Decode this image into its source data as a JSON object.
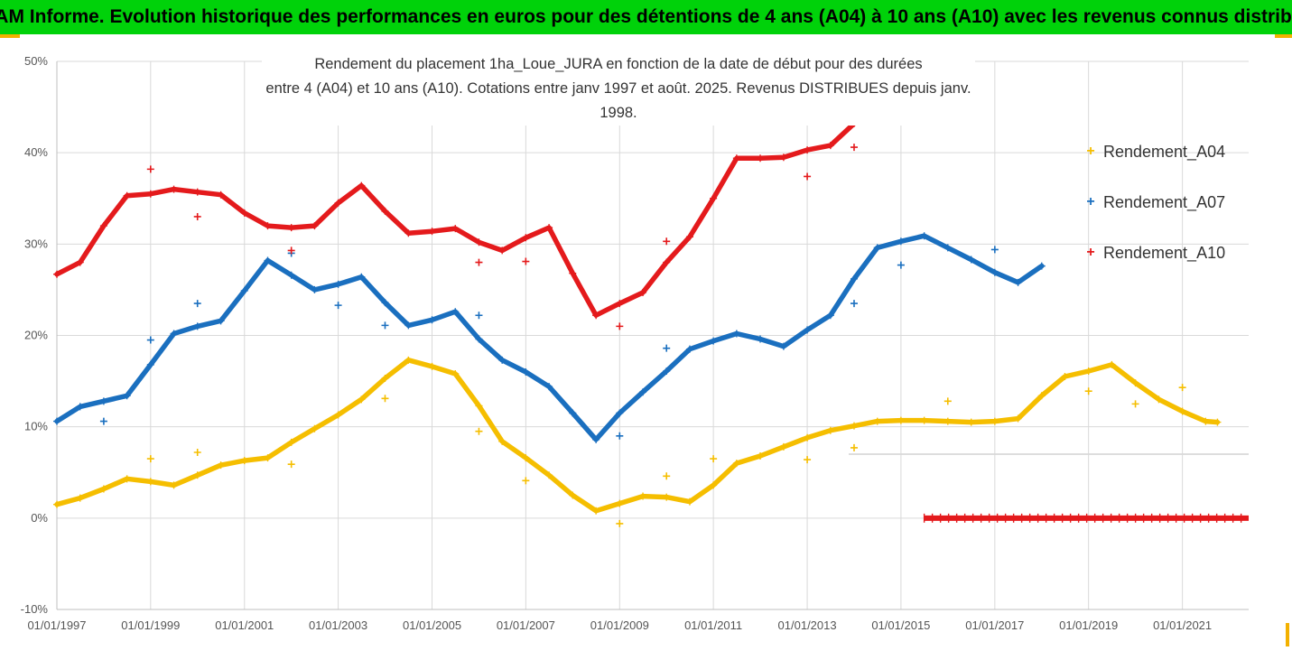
{
  "header": {
    "title": "ADAM Informe. Evolution historique des performances en euros pour des détentions de 4 ans (A04) à 10 ans (A10) avec les revenus connus distribués"
  },
  "colors": {
    "banner": "#00d20a",
    "frame_accent": "#f3b100",
    "A04": "#f5be00",
    "A07": "#1a6fbf",
    "A10": "#e41a1c",
    "grid": "#d9d9d9"
  },
  "chart_data": {
    "type": "scatter",
    "title_line1": "Rendement du placement 1ha_Loue_JURA en fonction de la date de début pour des durées",
    "title_line2": "entre 4 (A04) et 10 ans (A10). Cotations entre janv 1997 et août. 2025. Revenus DISTRIBUES depuis janv. 1998.",
    "xlabel": "",
    "ylabel": "",
    "x_ticks": [
      "01/01/1997",
      "01/01/1999",
      "01/01/2001",
      "01/01/2003",
      "01/01/2005",
      "01/01/2007",
      "01/01/2009",
      "01/01/2011",
      "01/01/2013",
      "01/01/2015",
      "01/01/2017",
      "01/01/2019",
      "01/01/2021"
    ],
    "y_ticks": [
      "-10%",
      "0%",
      "10%",
      "20%",
      "30%",
      "40%",
      "50%"
    ],
    "xlim": [
      "1997-01-01",
      "2022-06-01"
    ],
    "ylim": [
      -10,
      50
    ],
    "legend_position": "right",
    "grid": true,
    "series": [
      {
        "name": "Rendement_A04",
        "key": "A04",
        "line": [
          [
            "1997-01-01",
            1.5
          ],
          [
            "1997-07-01",
            2.2
          ],
          [
            "1998-01-01",
            3.2
          ],
          [
            "1998-07-01",
            4.3
          ],
          [
            "1999-01-01",
            4.0
          ],
          [
            "1999-07-01",
            3.6
          ],
          [
            "2000-01-01",
            4.7
          ],
          [
            "2000-07-01",
            5.8
          ],
          [
            "2001-01-01",
            6.3
          ],
          [
            "2001-07-01",
            6.6
          ],
          [
            "2002-01-01",
            8.3
          ],
          [
            "2002-07-01",
            9.8
          ],
          [
            "2003-01-01",
            11.3
          ],
          [
            "2003-07-01",
            13.0
          ],
          [
            "2004-01-01",
            15.3
          ],
          [
            "2004-07-01",
            17.3
          ],
          [
            "2005-01-01",
            16.6
          ],
          [
            "2005-07-01",
            15.8
          ],
          [
            "2006-01-01",
            12.3
          ],
          [
            "2006-07-01",
            8.4
          ],
          [
            "2007-01-01",
            6.6
          ],
          [
            "2007-07-01",
            4.7
          ],
          [
            "2008-01-01",
            2.5
          ],
          [
            "2008-07-01",
            0.8
          ],
          [
            "2009-01-01",
            1.6
          ],
          [
            "2009-07-01",
            2.4
          ],
          [
            "2010-01-01",
            2.3
          ],
          [
            "2010-07-01",
            1.8
          ],
          [
            "2011-01-01",
            3.6
          ],
          [
            "2011-07-01",
            6.0
          ],
          [
            "2012-01-01",
            6.8
          ],
          [
            "2012-07-01",
            7.8
          ],
          [
            "2013-01-01",
            8.8
          ],
          [
            "2013-07-01",
            9.6
          ],
          [
            "2014-01-01",
            10.1
          ],
          [
            "2014-07-01",
            10.6
          ],
          [
            "2015-01-01",
            10.7
          ],
          [
            "2015-07-01",
            10.7
          ],
          [
            "2016-01-01",
            10.6
          ],
          [
            "2016-07-01",
            10.5
          ],
          [
            "2017-01-01",
            10.6
          ],
          [
            "2017-07-01",
            10.9
          ],
          [
            "2018-01-01",
            13.4
          ],
          [
            "2018-07-01",
            15.5
          ],
          [
            "2019-01-01",
            16.1
          ],
          [
            "2019-07-01",
            16.8
          ],
          [
            "2020-01-01",
            14.8
          ],
          [
            "2020-07-01",
            13.0
          ],
          [
            "2021-01-01",
            11.7
          ],
          [
            "2021-07-01",
            10.6
          ],
          [
            "2021-10-01",
            10.5
          ]
        ],
        "outliers": [
          [
            "1999-01-01",
            6.5
          ],
          [
            "2000-01-01",
            7.2
          ],
          [
            "2002-01-01",
            5.9
          ],
          [
            "2004-01-01",
            13.1
          ],
          [
            "2006-01-01",
            9.5
          ],
          [
            "2007-01-01",
            4.1
          ],
          [
            "2009-01-01",
            -0.6
          ],
          [
            "2010-01-01",
            4.6
          ],
          [
            "2011-01-01",
            6.5
          ],
          [
            "2013-01-01",
            6.4
          ],
          [
            "2014-01-01",
            7.7
          ],
          [
            "2016-01-01",
            12.8
          ],
          [
            "2019-01-01",
            13.9
          ],
          [
            "2020-01-01",
            12.5
          ],
          [
            "2021-01-01",
            14.3
          ]
        ]
      },
      {
        "name": "Rendement_A07",
        "key": "A07",
        "line": [
          [
            "1997-01-01",
            10.6
          ],
          [
            "1997-07-01",
            12.2
          ],
          [
            "1998-01-01",
            12.8
          ],
          [
            "1998-07-01",
            13.4
          ],
          [
            "1999-01-01",
            16.8
          ],
          [
            "1999-07-01",
            20.2
          ],
          [
            "2000-01-01",
            21.0
          ],
          [
            "2000-07-01",
            21.6
          ],
          [
            "2001-01-01",
            24.9
          ],
          [
            "2001-07-01",
            28.2
          ],
          [
            "2002-01-01",
            26.6
          ],
          [
            "2002-07-01",
            25.0
          ],
          [
            "2003-01-01",
            25.6
          ],
          [
            "2003-07-01",
            26.4
          ],
          [
            "2004-01-01",
            23.6
          ],
          [
            "2004-07-01",
            21.1
          ],
          [
            "2005-01-01",
            21.7
          ],
          [
            "2005-07-01",
            22.6
          ],
          [
            "2006-01-01",
            19.6
          ],
          [
            "2006-07-01",
            17.3
          ],
          [
            "2007-01-01",
            16.0
          ],
          [
            "2007-07-01",
            14.4
          ],
          [
            "2008-01-01",
            11.5
          ],
          [
            "2008-07-01",
            8.6
          ],
          [
            "2009-01-01",
            11.5
          ],
          [
            "2009-07-01",
            13.8
          ],
          [
            "2010-01-01",
            16.1
          ],
          [
            "2010-07-01",
            18.5
          ],
          [
            "2011-01-01",
            19.4
          ],
          [
            "2011-07-01",
            20.2
          ],
          [
            "2012-01-01",
            19.6
          ],
          [
            "2012-07-01",
            18.8
          ],
          [
            "2013-01-01",
            20.6
          ],
          [
            "2013-07-01",
            22.2
          ],
          [
            "2014-01-01",
            26.2
          ],
          [
            "2014-07-01",
            29.6
          ],
          [
            "2015-01-01",
            30.3
          ],
          [
            "2015-07-01",
            30.9
          ],
          [
            "2016-01-01",
            29.6
          ],
          [
            "2016-07-01",
            28.3
          ],
          [
            "2017-01-01",
            26.9
          ],
          [
            "2017-07-01",
            25.8
          ],
          [
            "2018-01-01",
            27.6
          ]
        ],
        "outliers": [
          [
            "1998-01-01",
            10.6
          ],
          [
            "1999-01-01",
            19.5
          ],
          [
            "2000-01-01",
            23.5
          ],
          [
            "2002-01-01",
            29.0
          ],
          [
            "2003-01-01",
            23.3
          ],
          [
            "2004-01-01",
            21.1
          ],
          [
            "2006-01-01",
            22.2
          ],
          [
            "2009-01-01",
            9.0
          ],
          [
            "2010-01-01",
            18.6
          ],
          [
            "2014-01-01",
            23.5
          ],
          [
            "2015-01-01",
            27.7
          ],
          [
            "2017-01-01",
            29.4
          ]
        ]
      },
      {
        "name": "Rendement_A10",
        "key": "A10",
        "line": [
          [
            "1997-01-01",
            26.7
          ],
          [
            "1997-07-01",
            28.0
          ],
          [
            "1998-01-01",
            32.0
          ],
          [
            "1998-07-01",
            35.3
          ],
          [
            "1999-01-01",
            35.5
          ],
          [
            "1999-07-01",
            36.0
          ],
          [
            "2000-01-01",
            35.7
          ],
          [
            "2000-07-01",
            35.4
          ],
          [
            "2001-01-01",
            33.4
          ],
          [
            "2001-07-01",
            32.0
          ],
          [
            "2002-01-01",
            31.8
          ],
          [
            "2002-07-01",
            32.0
          ],
          [
            "2003-01-01",
            34.5
          ],
          [
            "2003-07-01",
            36.4
          ],
          [
            "2004-01-01",
            33.6
          ],
          [
            "2004-07-01",
            31.2
          ],
          [
            "2005-01-01",
            31.4
          ],
          [
            "2005-07-01",
            31.7
          ],
          [
            "2006-01-01",
            30.2
          ],
          [
            "2006-07-01",
            29.3
          ],
          [
            "2007-01-01",
            30.7
          ],
          [
            "2007-07-01",
            31.8
          ],
          [
            "2008-01-01",
            26.8
          ],
          [
            "2008-07-01",
            22.2
          ],
          [
            "2009-01-01",
            23.5
          ],
          [
            "2009-07-01",
            24.7
          ],
          [
            "2010-01-01",
            28.0
          ],
          [
            "2010-07-01",
            30.8
          ],
          [
            "2011-01-01",
            35.0
          ],
          [
            "2011-07-01",
            39.4
          ],
          [
            "2012-01-01",
            39.4
          ],
          [
            "2012-07-01",
            39.5
          ],
          [
            "2013-01-01",
            40.3
          ],
          [
            "2013-07-01",
            40.8
          ],
          [
            "2014-01-01",
            43.2
          ],
          [
            "2014-07-01",
            45.6
          ],
          [
            "2015-01-01",
            45.6
          ],
          [
            "2015-07-01",
            45.7
          ]
        ],
        "outliers": [
          [
            "1999-01-01",
            38.2
          ],
          [
            "2000-01-01",
            33.0
          ],
          [
            "2002-01-01",
            29.3
          ],
          [
            "2006-01-01",
            28.0
          ],
          [
            "2007-01-01",
            28.1
          ],
          [
            "2009-01-01",
            21.0
          ],
          [
            "2010-01-01",
            30.3
          ],
          [
            "2013-01-01",
            37.4
          ],
          [
            "2014-01-01",
            40.6
          ]
        ],
        "zero_segment": {
          "from": "2015-07-01",
          "to": "2022-06-01",
          "value": 0
        }
      }
    ]
  }
}
